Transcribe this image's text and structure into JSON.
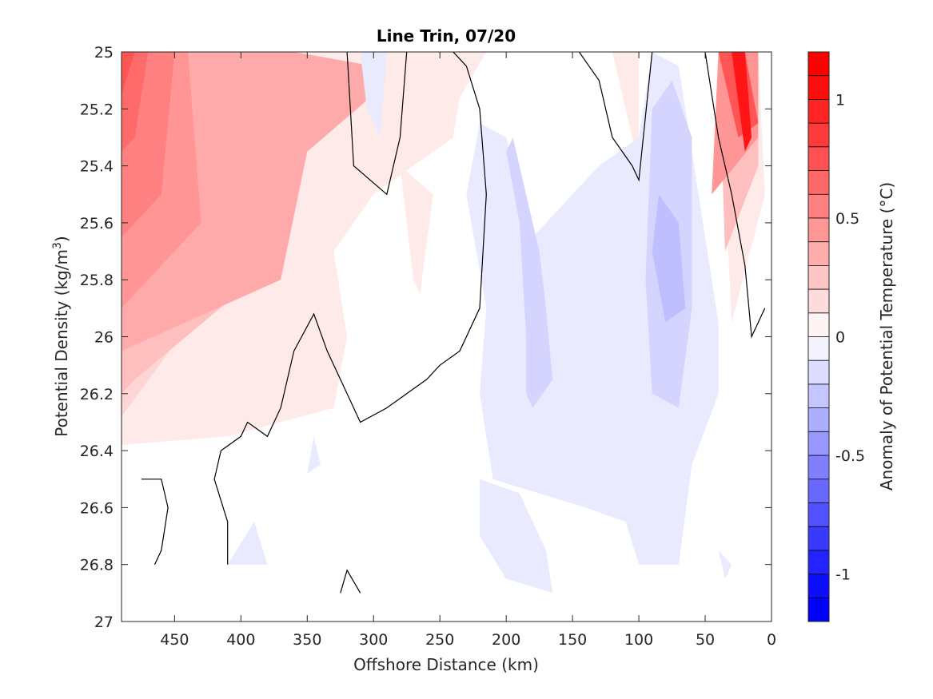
{
  "chart_data": {
    "type": "contour",
    "title": "Line Trin, 07/20",
    "xlabel": "Offshore Distance (km)",
    "ylabel_main": "Potential Density (kg/m",
    "ylabel_sup": "3",
    "ylabel_end": ")",
    "xlim": [
      490,
      0
    ],
    "x_reversed": true,
    "ylim": [
      25,
      27
    ],
    "y_reversed": true,
    "xticks": [
      450,
      400,
      350,
      300,
      250,
      200,
      150,
      100,
      50,
      0
    ],
    "xtick_labels": [
      "450",
      "400",
      "350",
      "300",
      "250",
      "200",
      "150",
      "100",
      "50",
      "0"
    ],
    "yticks": [
      25,
      25.2,
      25.4,
      25.6,
      25.8,
      26,
      26.2,
      26.4,
      26.6,
      26.8,
      27
    ],
    "ytick_labels": [
      "25",
      "25.2",
      "25.4",
      "25.6",
      "25.8",
      "26",
      "26.2",
      "26.4",
      "26.6",
      "26.8",
      "27"
    ],
    "colorbar": {
      "label": "Anomaly of Potential Temperature (°C)",
      "range": [
        -1.2,
        1.2
      ],
      "step": 0.1,
      "ticks": [
        1,
        0.5,
        0,
        -0.5,
        -1
      ],
      "tick_labels": [
        "1",
        "0.5",
        "0",
        "-0.5",
        "-1"
      ],
      "colormap": "blue-white-red",
      "low_color": "#0000ff",
      "zero_color": "#ffffff",
      "high_color": "#ff0000"
    },
    "regions": [
      {
        "value": 0.1,
        "points": [
          [
            490,
            25
          ],
          [
            230,
            25
          ],
          [
            240,
            25.3
          ],
          [
            300,
            25.5
          ],
          [
            330,
            25.7
          ],
          [
            320,
            26
          ],
          [
            330,
            26.25
          ],
          [
            410,
            26.35
          ],
          [
            490,
            26.38
          ]
        ]
      },
      {
        "value": 0.2,
        "points": [
          [
            490,
            25
          ],
          [
            410,
            25
          ],
          [
            430,
            25.9
          ],
          [
            490,
            26.28
          ]
        ]
      },
      {
        "value": 0.3,
        "points": [
          [
            490,
            25
          ],
          [
            400,
            25
          ],
          [
            390,
            25.8
          ],
          [
            480,
            26.15
          ],
          [
            490,
            26.2
          ]
        ]
      },
      {
        "value": 0.4,
        "points": [
          [
            490,
            25
          ],
          [
            360,
            25
          ],
          [
            300,
            25.05
          ],
          [
            300,
            25.15
          ],
          [
            350,
            25.35
          ],
          [
            370,
            25.8
          ],
          [
            490,
            26.05
          ]
        ]
      },
      {
        "value": 0.5,
        "points": [
          [
            490,
            25
          ],
          [
            440,
            25
          ],
          [
            430,
            25.6
          ],
          [
            490,
            25.9
          ]
        ]
      },
      {
        "value": 0.6,
        "points": [
          [
            490,
            25
          ],
          [
            450,
            25
          ],
          [
            460,
            25.5
          ],
          [
            490,
            25.65
          ]
        ]
      },
      {
        "value": 0.7,
        "points": [
          [
            490,
            25
          ],
          [
            470,
            25
          ],
          [
            480,
            25.3
          ],
          [
            490,
            25.35
          ]
        ]
      },
      {
        "value": 0.8,
        "points": [
          [
            490,
            25
          ],
          [
            480,
            25
          ],
          [
            490,
            25.15
          ]
        ]
      },
      {
        "value": 0.1,
        "points": [
          [
            280,
            25.4
          ],
          [
            270,
            25.8
          ],
          [
            265,
            25.85
          ],
          [
            255,
            25.5
          ]
        ]
      },
      {
        "value": 0.1,
        "points": [
          [
            260,
            25
          ],
          [
            215,
            25
          ],
          [
            240,
            25.2
          ],
          [
            250,
            25.15
          ]
        ]
      },
      {
        "value": 0.1,
        "points": [
          [
            120,
            25
          ],
          [
            100,
            25
          ],
          [
            100,
            25.4
          ],
          [
            110,
            25.2
          ]
        ]
      },
      {
        "value": 0.1,
        "points": [
          [
            40,
            25
          ],
          [
            10,
            25
          ],
          [
            5,
            25.5
          ],
          [
            30,
            25.95
          ]
        ]
      },
      {
        "value": 0.3,
        "points": [
          [
            40,
            25
          ],
          [
            10,
            25
          ],
          [
            10,
            25.4
          ],
          [
            35,
            25.7
          ]
        ]
      },
      {
        "value": 0.5,
        "points": [
          [
            40,
            25
          ],
          [
            10,
            25
          ],
          [
            10,
            25.3
          ],
          [
            45,
            25.5
          ]
        ]
      },
      {
        "value": 0.8,
        "points": [
          [
            40,
            25
          ],
          [
            20,
            25
          ],
          [
            10,
            25.25
          ],
          [
            25,
            25.3
          ]
        ]
      },
      {
        "value": 1.1,
        "points": [
          [
            30,
            25
          ],
          [
            20,
            25
          ],
          [
            15,
            25.3
          ],
          [
            20,
            25.35
          ]
        ]
      },
      {
        "value": -0.1,
        "points": [
          [
            220,
            25.25
          ],
          [
            230,
            25.5
          ],
          [
            215,
            25.9
          ],
          [
            220,
            26.2
          ],
          [
            210,
            26.5
          ],
          [
            140,
            26.6
          ],
          [
            110,
            26.65
          ],
          [
            100,
            26.8
          ],
          [
            70,
            26.8
          ],
          [
            60,
            26.45
          ],
          [
            40,
            26.2
          ],
          [
            40,
            25.95
          ],
          [
            70,
            25.05
          ],
          [
            90,
            25
          ],
          [
            100,
            25.3
          ],
          [
            130,
            25.4
          ],
          [
            150,
            25.5
          ],
          [
            180,
            25.65
          ],
          [
            200,
            25.3
          ]
        ]
      },
      {
        "value": -0.1,
        "points": [
          [
            220,
            26.5
          ],
          [
            190,
            26.55
          ],
          [
            170,
            26.75
          ],
          [
            165,
            26.9
          ],
          [
            200,
            26.85
          ],
          [
            220,
            26.7
          ]
        ]
      },
      {
        "value": -0.1,
        "points": [
          [
            310,
            25
          ],
          [
            290,
            25
          ],
          [
            295,
            25.3
          ],
          [
            305,
            25.2
          ]
        ]
      },
      {
        "value": -0.1,
        "points": [
          [
            390,
            26.65
          ],
          [
            380,
            26.8
          ],
          [
            410,
            26.8
          ]
        ]
      },
      {
        "value": -0.1,
        "points": [
          [
            345,
            26.35
          ],
          [
            340,
            26.45
          ],
          [
            350,
            26.48
          ]
        ]
      },
      {
        "value": -0.1,
        "points": [
          [
            40,
            26.75
          ],
          [
            35,
            26.85
          ],
          [
            30,
            26.8
          ]
        ]
      },
      {
        "value": -0.2,
        "points": [
          [
            200,
            25.35
          ],
          [
            190,
            25.6
          ],
          [
            185,
            26
          ],
          [
            185,
            26.2
          ],
          [
            180,
            26.25
          ],
          [
            165,
            26.15
          ],
          [
            170,
            25.9
          ],
          [
            175,
            25.7
          ],
          [
            195,
            25.3
          ]
        ]
      },
      {
        "value": -0.2,
        "points": [
          [
            90,
            25.2
          ],
          [
            95,
            25.8
          ],
          [
            90,
            26.2
          ],
          [
            70,
            26.25
          ],
          [
            60,
            25.9
          ],
          [
            60,
            25.3
          ],
          [
            75,
            25.1
          ]
        ]
      },
      {
        "value": -0.3,
        "points": [
          [
            85,
            25.5
          ],
          [
            90,
            25.7
          ],
          [
            80,
            25.95
          ],
          [
            65,
            25.9
          ],
          [
            70,
            25.6
          ]
        ]
      }
    ],
    "zero_contours": [
      [
        [
          475,
          26.5
        ],
        [
          460,
          26.5
        ],
        [
          455,
          26.6
        ],
        [
          460,
          26.75
        ],
        [
          465,
          26.8
        ]
      ],
      [
        [
          410,
          26.8
        ],
        [
          410,
          26.65
        ],
        [
          420,
          26.5
        ],
        [
          415,
          26.4
        ],
        [
          400,
          26.35
        ],
        [
          395,
          26.3
        ],
        [
          380,
          26.35
        ],
        [
          370,
          26.25
        ],
        [
          360,
          26.05
        ],
        [
          345,
          25.92
        ],
        [
          335,
          26.05
        ],
        [
          320,
          26.2
        ],
        [
          310,
          26.3
        ],
        [
          290,
          26.25
        ],
        [
          275,
          26.2
        ],
        [
          260,
          26.15
        ],
        [
          250,
          26.1
        ],
        [
          235,
          26.05
        ],
        [
          220,
          25.9
        ],
        [
          215,
          25.5
        ],
        [
          220,
          25.2
        ],
        [
          230,
          25.05
        ],
        [
          240,
          25.0
        ]
      ],
      [
        [
          320,
          25
        ],
        [
          315,
          25.4
        ],
        [
          290,
          25.5
        ],
        [
          280,
          25.3
        ],
        [
          275,
          25.0
        ]
      ],
      [
        [
          145,
          25
        ],
        [
          130,
          25.1
        ],
        [
          120,
          25.3
        ],
        [
          105,
          25.4
        ],
        [
          100,
          25.45
        ],
        [
          90,
          25.0
        ]
      ],
      [
        [
          50,
          25
        ],
        [
          40,
          25.3
        ],
        [
          30,
          25.5
        ],
        [
          20,
          25.75
        ],
        [
          15,
          26.0
        ],
        [
          5,
          25.9
        ]
      ],
      [
        [
          325,
          26.9
        ],
        [
          320,
          26.82
        ],
        [
          310,
          26.9
        ]
      ]
    ]
  }
}
